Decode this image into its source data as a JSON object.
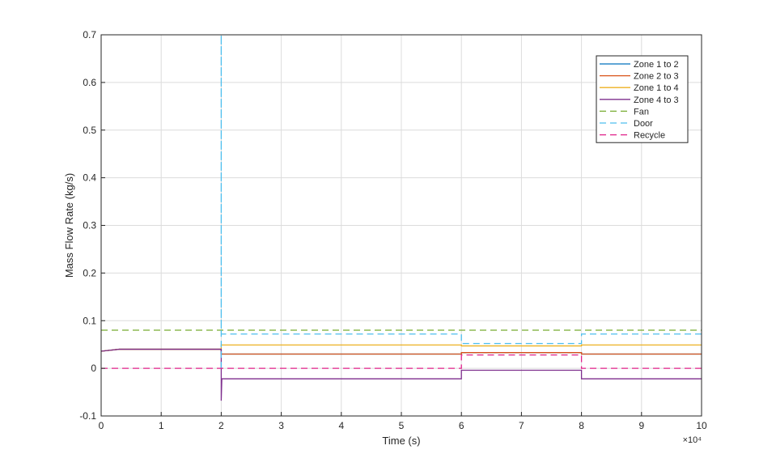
{
  "chart_data": {
    "type": "line",
    "title": "",
    "xlabel": "Time (s)",
    "ylabel": "Mass Flow Rate (kg/s)",
    "x_exponent_label": "×10⁴",
    "xlim": [
      0,
      10
    ],
    "ylim": [
      -0.1,
      0.7
    ],
    "xticks": [
      0,
      1,
      2,
      3,
      4,
      5,
      6,
      7,
      8,
      9,
      10
    ],
    "yticks": [
      -0.1,
      0,
      0.1,
      0.2,
      0.3,
      0.4,
      0.5,
      0.6,
      0.7
    ],
    "ytick_labels": [
      "-0.1",
      "0",
      "0.1",
      "0.2",
      "0.3",
      "0.4",
      "0.5",
      "0.6",
      "0.7"
    ],
    "grid": true,
    "legend_position": "top-right",
    "series": [
      {
        "name": "Zone 1 to 2",
        "color": "#0072BD",
        "dash": false,
        "x": [
          0,
          0.3,
          2,
          2,
          6,
          6,
          8,
          8,
          10
        ],
        "y": [
          0.036,
          0.04,
          0.04,
          0.03,
          0.03,
          0.033,
          0.033,
          0.03,
          0.03
        ]
      },
      {
        "name": "Zone 2 to 3",
        "color": "#D95319",
        "dash": false,
        "x": [
          0,
          0.3,
          2,
          2,
          6,
          6,
          8,
          8,
          10
        ],
        "y": [
          0.036,
          0.04,
          0.04,
          0.03,
          0.03,
          0.033,
          0.033,
          0.03,
          0.03
        ]
      },
      {
        "name": "Zone 1 to 4",
        "color": "#EDB120",
        "dash": false,
        "x": [
          0,
          0.3,
          2,
          2,
          6,
          6,
          8,
          8,
          10
        ],
        "y": [
          0.036,
          0.04,
          0.04,
          0.049,
          0.049,
          0.047,
          0.047,
          0.049,
          0.049
        ]
      },
      {
        "name": "Zone 4 to 3",
        "color": "#7E2F8E",
        "dash": false,
        "x": [
          0,
          0.3,
          2,
          2,
          2.01,
          6,
          6,
          8,
          8,
          10
        ],
        "y": [
          0.036,
          0.04,
          0.04,
          -0.068,
          -0.022,
          -0.022,
          -0.004,
          -0.004,
          -0.022,
          -0.022
        ]
      },
      {
        "name": "Fan",
        "color": "#77AC30",
        "dash": true,
        "x": [
          0,
          10
        ],
        "y": [
          0.08,
          0.08
        ]
      },
      {
        "name": "Door",
        "color": "#4DBEEE",
        "dash": true,
        "x": [
          2,
          2,
          2,
          6,
          6,
          8,
          8,
          10
        ],
        "y": [
          0,
          0.7,
          0.072,
          0.072,
          0.052,
          0.052,
          0.072,
          0.072
        ]
      },
      {
        "name": "Recycle",
        "color": "#E0218A",
        "dash": true,
        "x": [
          0,
          6,
          6,
          8,
          8,
          10
        ],
        "y": [
          0,
          0,
          0.028,
          0.028,
          0,
          0
        ]
      }
    ]
  }
}
